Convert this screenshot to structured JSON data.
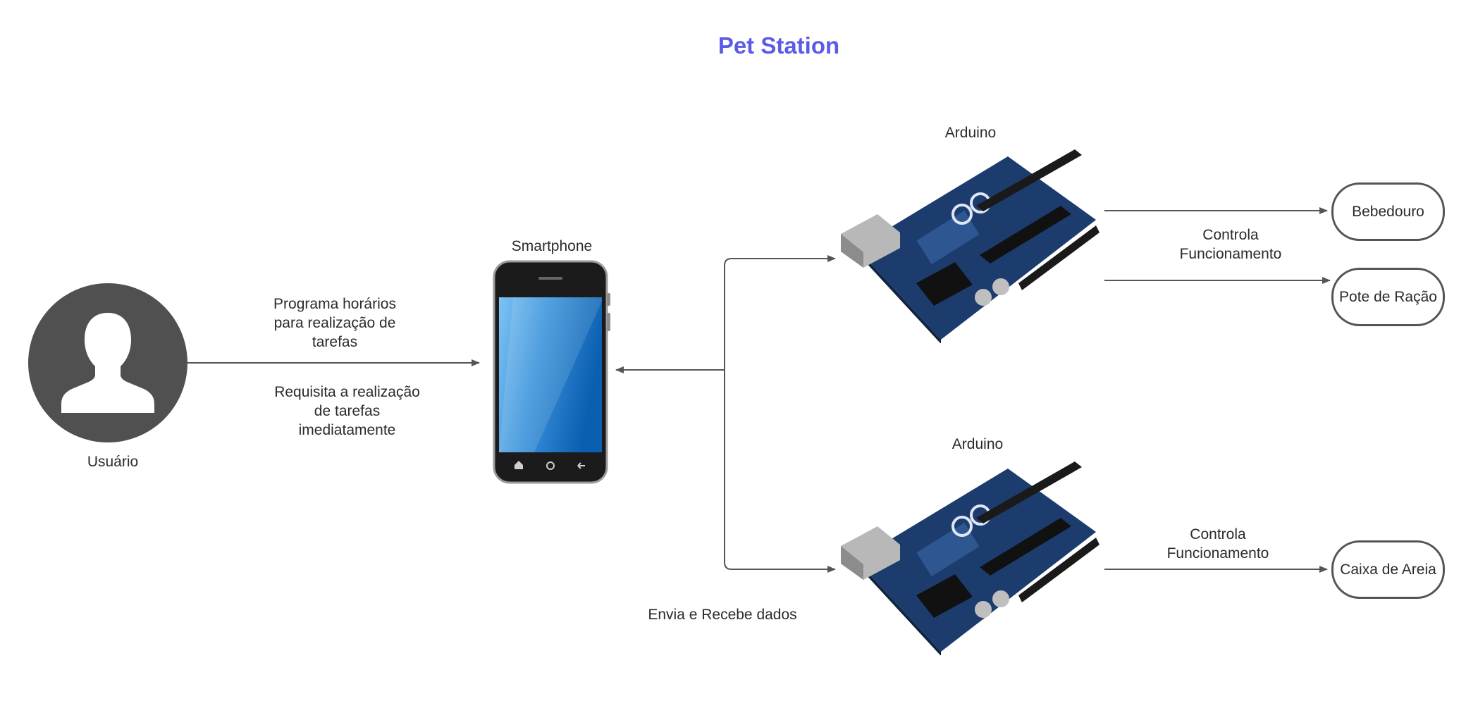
{
  "title": "Pet Station",
  "colors": {
    "title": "#5b5be8",
    "line": "#555555",
    "user_circle": "#505050",
    "board": "#1d3c6e"
  },
  "nodes": {
    "user": {
      "label": "Usuário",
      "icon": "person-icon"
    },
    "smartphone": {
      "label": "Smartphone",
      "icon": "smartphone-icon"
    },
    "arduino_top": {
      "label": "Arduino",
      "icon": "arduino-board-icon"
    },
    "arduino_bottom": {
      "label": "Arduino",
      "icon": "arduino-board-icon"
    },
    "bebedouro": {
      "label": "Bebedouro"
    },
    "pote_racao": {
      "label": "Pote de Ração"
    },
    "caixa_areia": {
      "label": "Caixa de Areia"
    }
  },
  "edges": {
    "user_to_phone_top": [
      "Programa horários",
      "para realização de",
      "tarefas"
    ],
    "user_to_phone_bottom": [
      "Requisita a realização",
      "de tarefas",
      "imediatamente"
    ],
    "phone_arduino": "Envia e Recebe dados",
    "arduino_top_controls": [
      "Controla",
      "Funcionamento"
    ],
    "arduino_bottom_controls": [
      "Controla",
      "Funcionamento"
    ]
  }
}
